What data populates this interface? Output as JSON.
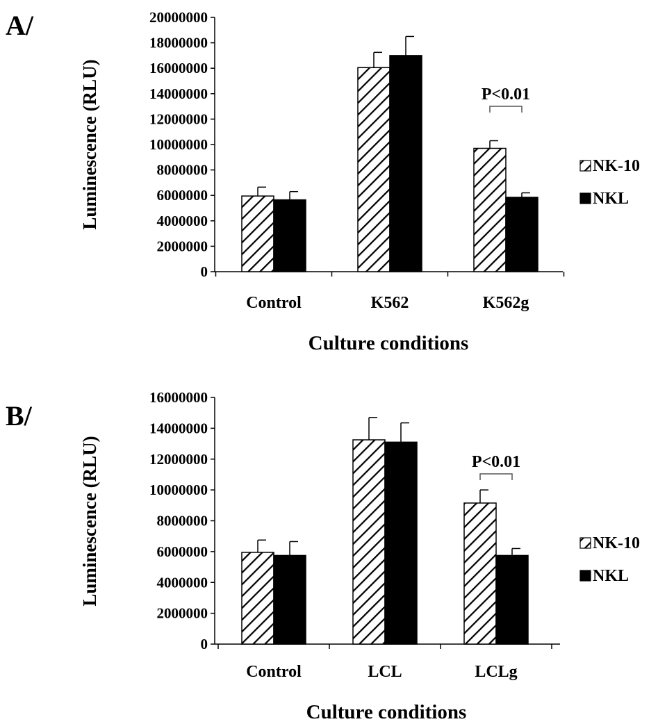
{
  "chart_data": [
    {
      "panel_label": "A/",
      "type": "bar",
      "categories": [
        "Control",
        "K562",
        "K562g"
      ],
      "series": [
        {
          "name": "NK-10",
          "pattern": "hatched",
          "values": [
            5950000,
            16050000,
            9700000
          ],
          "errors": [
            700000,
            1200000,
            600000
          ]
        },
        {
          "name": "NKL",
          "pattern": "solid",
          "values": [
            5650000,
            17000000,
            5850000
          ],
          "errors": [
            650000,
            1500000,
            350000
          ]
        }
      ],
      "xlabel": "Culture conditions",
      "ylabel": "Luminescence (RLU)",
      "ylim": [
        0,
        20000000
      ],
      "yticks": [
        "0",
        "2000000",
        "4000000",
        "6000000",
        "8000000",
        "10000000",
        "12000000",
        "14000000",
        "16000000",
        "18000000",
        "20000000"
      ],
      "annotation": {
        "text": "P<0.01",
        "category": "K562g"
      },
      "legend": "right",
      "grid": false
    },
    {
      "panel_label": "B/",
      "type": "bar",
      "categories": [
        "Control",
        "LCL",
        "LCLg"
      ],
      "series": [
        {
          "name": "NK-10",
          "pattern": "hatched",
          "values": [
            5950000,
            13250000,
            9150000
          ],
          "errors": [
            800000,
            1450000,
            850000
          ]
        },
        {
          "name": "NKL",
          "pattern": "solid",
          "values": [
            5750000,
            13100000,
            5750000
          ],
          "errors": [
            900000,
            1250000,
            450000
          ]
        }
      ],
      "xlabel": "Culture conditions",
      "ylabel": "Luminescence (RLU)",
      "ylim": [
        0,
        16000000
      ],
      "yticks": [
        "0",
        "2000000",
        "4000000",
        "6000000",
        "8000000",
        "10000000",
        "12000000",
        "14000000",
        "16000000"
      ],
      "annotation": {
        "text": "P<0.01",
        "category": "LCLg"
      },
      "legend": "right",
      "grid": false
    }
  ]
}
